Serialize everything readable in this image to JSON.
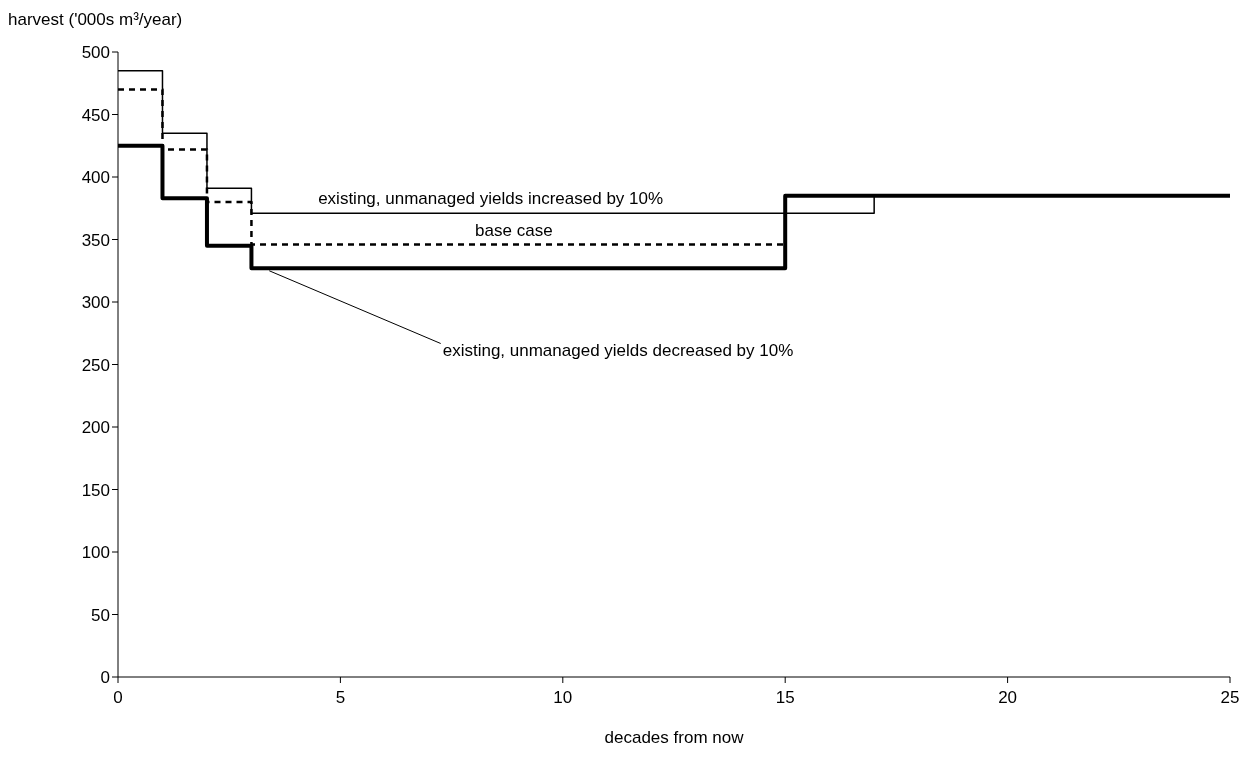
{
  "chart_data": {
    "type": "step",
    "xlabel": "decades from now",
    "ylabel": "harvest ('000s m³/year)",
    "xlim": [
      0,
      25
    ],
    "xticks": [
      0,
      5,
      10,
      15,
      20,
      25
    ],
    "ylim": [
      0,
      500
    ],
    "yticks": [
      0,
      50,
      100,
      150,
      200,
      250,
      300,
      350,
      400,
      450,
      500
    ],
    "grid": false,
    "legend": false,
    "marker": "none",
    "series": [
      {
        "name": "existing, unmanaged yields increased by 10%",
        "color": "#000000",
        "line_style": "solid",
        "x": [
          0,
          1,
          2,
          3,
          17,
          25
        ],
        "values": [
          485,
          435,
          391,
          371,
          385,
          385
        ]
      },
      {
        "name": "base case",
        "color": "#000000",
        "line_style": "dashed",
        "x": [
          0,
          1,
          2,
          3,
          15
        ],
        "values": [
          470,
          422,
          380,
          346,
          346
        ]
      },
      {
        "name": "existing, unmanaged yields decreased by 10%",
        "color": "#000000",
        "line_style": "solid",
        "x": [
          0,
          1,
          2,
          3,
          15,
          25
        ],
        "values": [
          425,
          383,
          345,
          327,
          385,
          385
        ]
      }
    ]
  }
}
